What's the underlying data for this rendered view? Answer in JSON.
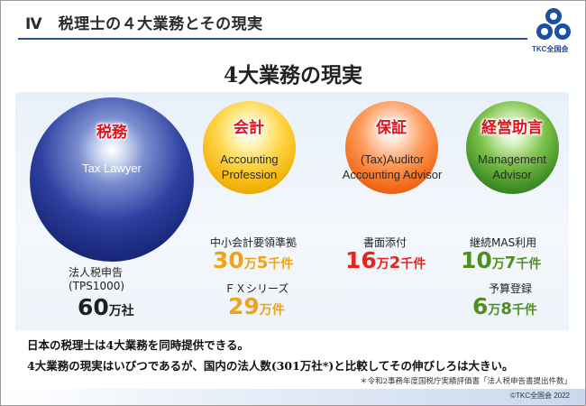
{
  "header": {
    "title": "Ⅳ　税理士の４大業務とその現実",
    "logo_text": "TKC全国会"
  },
  "main_title": "4大業務の現実",
  "services": [
    {
      "label": "税務",
      "english": "Tax Lawyer"
    },
    {
      "label": "会計",
      "english_line1": "Accounting",
      "english_line2": "Profession"
    },
    {
      "label": "保証",
      "english_line1": "(Tax)Auditor",
      "english_line2": "Accounting Advisor"
    },
    {
      "label": "経営助言",
      "english_line1": "Management",
      "english_line2": "Advisor"
    }
  ],
  "stats": {
    "tax": {
      "caption1": "法人税申告",
      "caption2": "(TPS1000)",
      "value_num": "60",
      "value_unit": "万社"
    },
    "accounting_1": {
      "caption": "中小会計要領準拠",
      "n1": "30",
      "u1": "万",
      "n2": "5",
      "u2": "千件"
    },
    "accounting_2": {
      "caption": "ＦＸシリーズ",
      "n1": "29",
      "u1": "万件"
    },
    "audit": {
      "caption": "書面添付",
      "n1": "16",
      "u1": "万",
      "n2": "2",
      "u2": "千件"
    },
    "mgmt_1": {
      "caption": "継続MAS利用",
      "n1": "10",
      "u1": "万",
      "n2": "7",
      "u2": "千件"
    },
    "mgmt_2": {
      "caption": "予算登録",
      "n1": "6",
      "u1": "万",
      "n2": "8",
      "u2": "千件"
    }
  },
  "summary": {
    "line1": "日本の税理士は4大業務を同時提供できる。",
    "line2": "4大業務の現実はいびつであるが、国内の法人数(301万社*)と比較してその伸びしろは大きい。",
    "footnote": "＊令和2事務年度国税庁実績評価書「法人税申告書提出件数」"
  },
  "footer": {
    "copyright": "©TKC全国会 2022"
  },
  "colors": {
    "accent_blue": "#2e4f8f",
    "red": "#e3261d",
    "orange": "#f0a318",
    "green": "#4e8e22"
  }
}
